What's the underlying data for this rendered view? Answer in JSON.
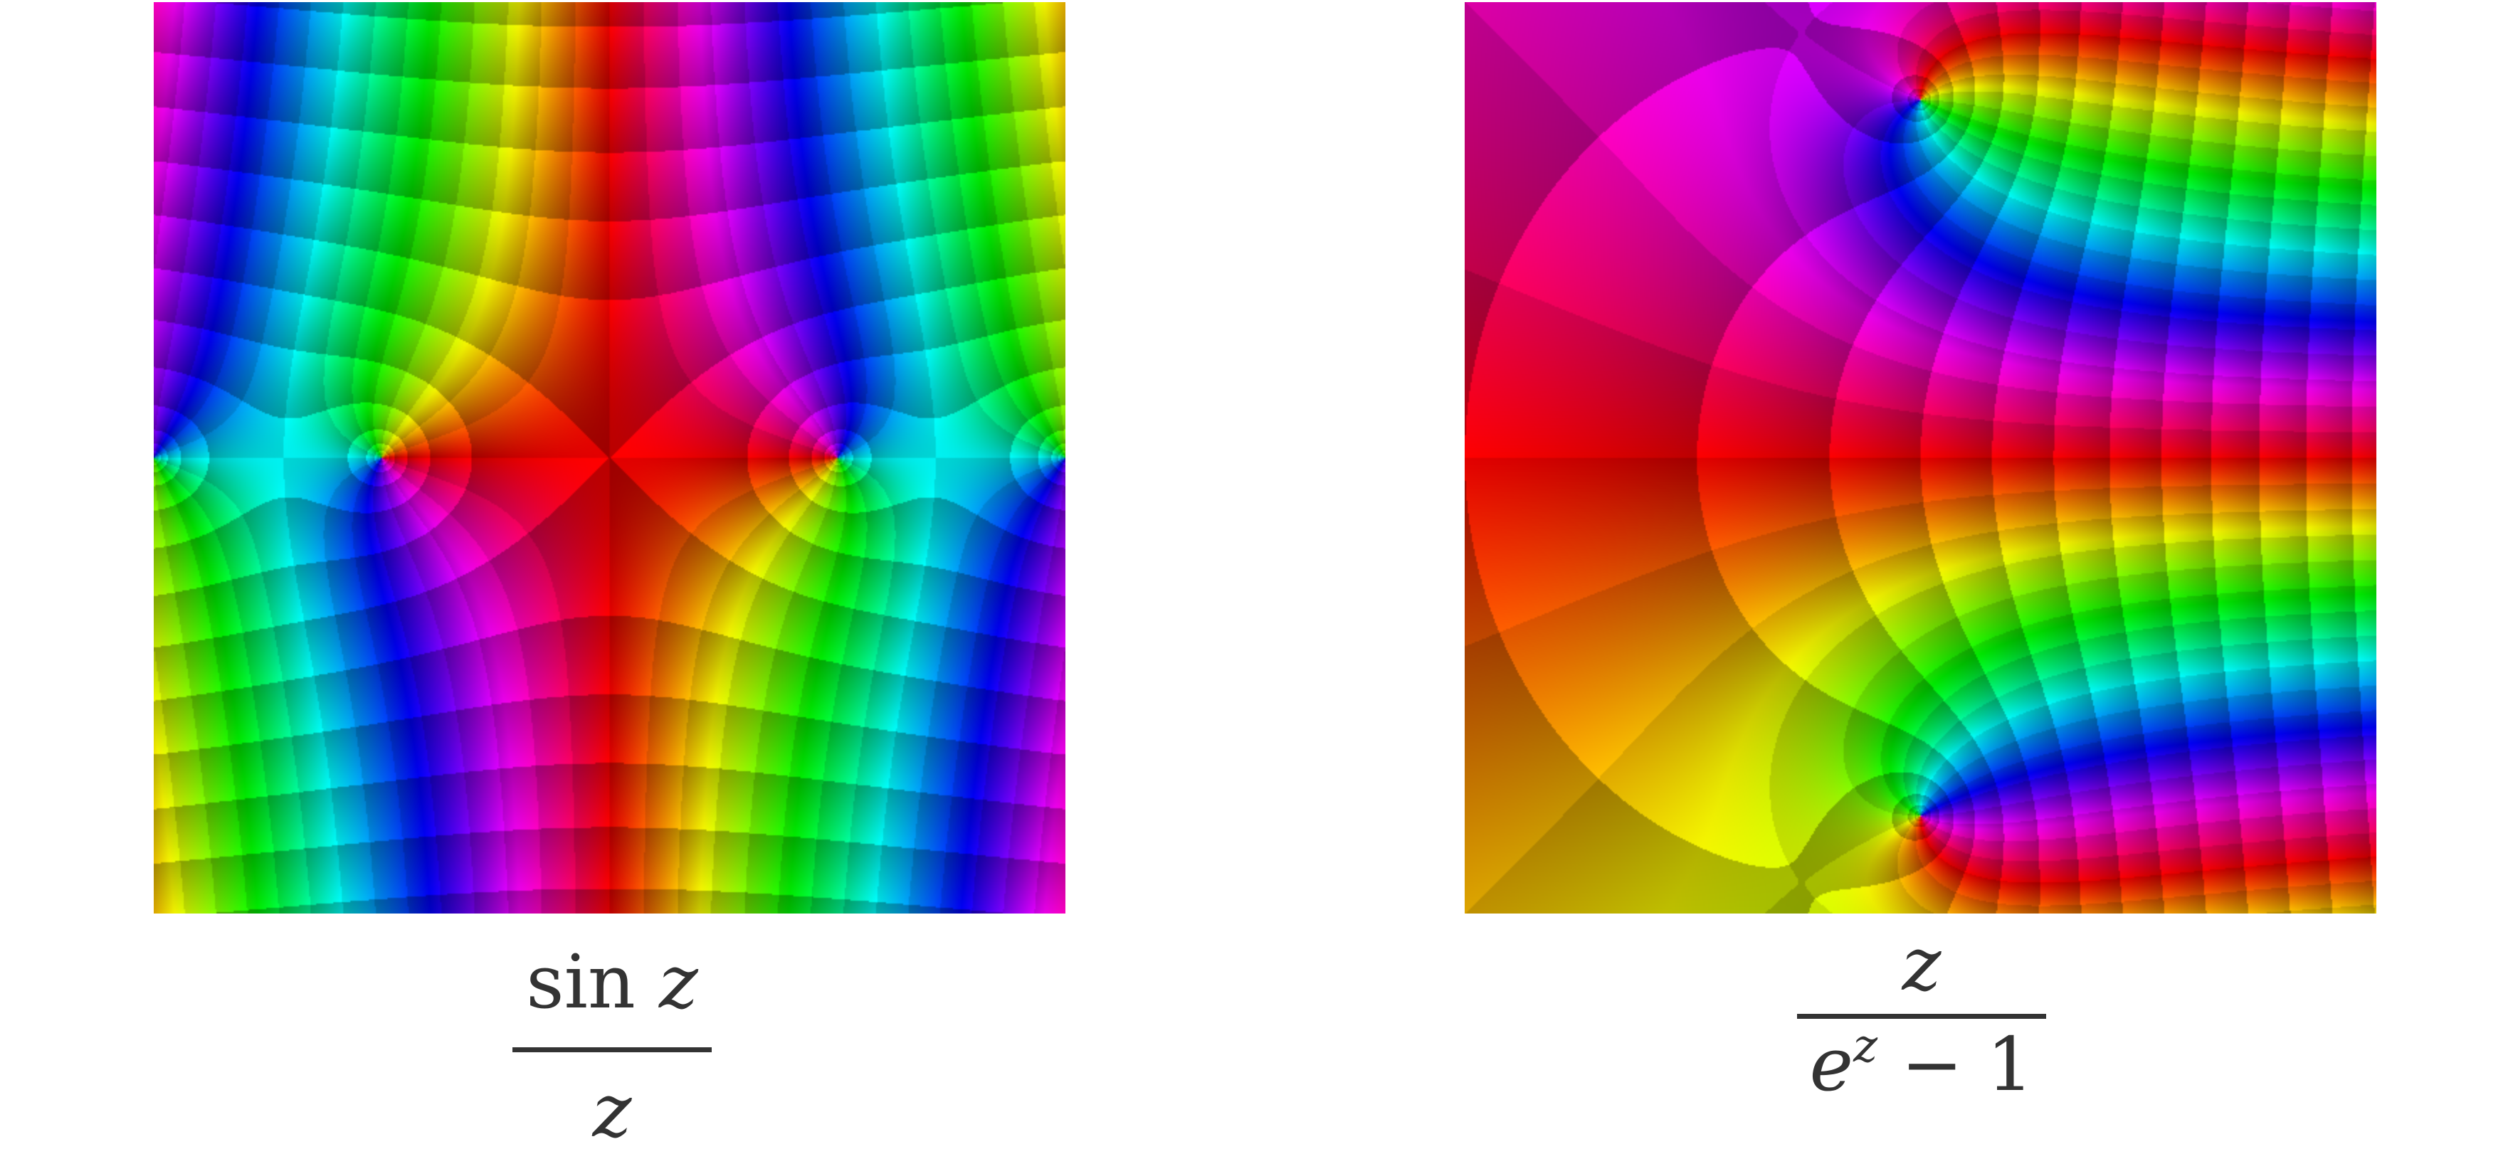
{
  "plots": [
    {
      "function": "sinz_over_z",
      "caption": {
        "numerator_fn": "sin",
        "numerator_var": "z",
        "denominator": "z"
      }
    },
    {
      "function": "z_over_expz_minus_1",
      "caption": {
        "numerator": "z",
        "denominator_base": "e",
        "denominator_exp": "z",
        "denominator_rest": " − 1"
      }
    }
  ],
  "coloring": "domain coloring: hue = arg f(z), red = positive real; shading by log|f| and arg contours"
}
